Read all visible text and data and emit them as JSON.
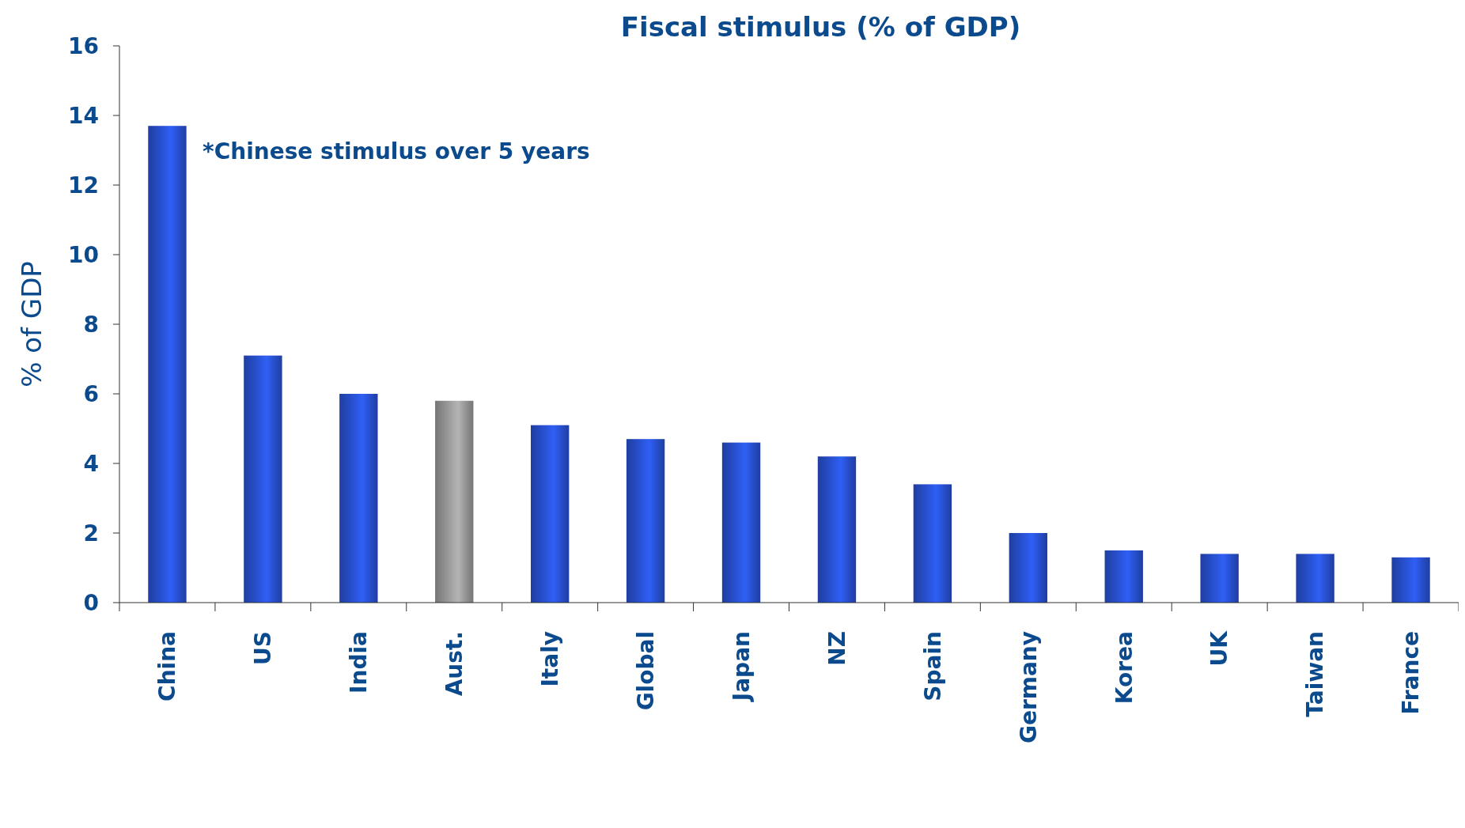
{
  "chart_data": {
    "type": "bar",
    "title": "Fiscal stimulus (% of GDP)",
    "ylabel": "% of GDP",
    "categories": [
      "China",
      "US",
      "India",
      "Aust.",
      "Italy",
      "Global",
      "Japan",
      "NZ",
      "Spain",
      "Germany",
      "Korea",
      "UK",
      "Taiwan",
      "France"
    ],
    "values": [
      13.7,
      7.1,
      6.0,
      5.8,
      5.1,
      4.7,
      4.6,
      4.2,
      3.4,
      2.0,
      1.5,
      1.4,
      1.4,
      1.3
    ],
    "colors": [
      "#2f5ff5",
      "#2f5ff5",
      "#2f5ff5",
      "#b4b4b4",
      "#2f5ff5",
      "#2f5ff5",
      "#2f5ff5",
      "#2f5ff5",
      "#2f5ff5",
      "#2f5ff5",
      "#2f5ff5",
      "#2f5ff5",
      "#2f5ff5",
      "#2f5ff5"
    ],
    "ylim": [
      0,
      16
    ],
    "yticks": [
      0,
      2,
      4,
      6,
      8,
      10,
      12,
      14,
      16
    ],
    "grid": false,
    "annotations": [
      "*Chinese stimulus over 5 years"
    ]
  }
}
